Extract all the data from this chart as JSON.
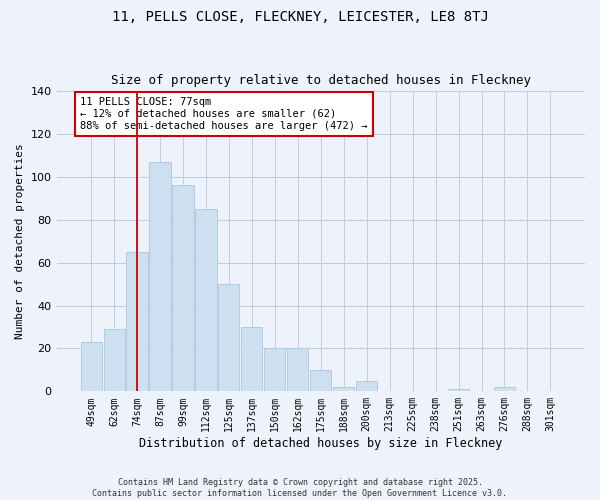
{
  "title": "11, PELLS CLOSE, FLECKNEY, LEICESTER, LE8 8TJ",
  "subtitle": "Size of property relative to detached houses in Fleckney",
  "xlabel": "Distribution of detached houses by size in Fleckney",
  "ylabel": "Number of detached properties",
  "categories": [
    "49sqm",
    "62sqm",
    "74sqm",
    "87sqm",
    "99sqm",
    "112sqm",
    "125sqm",
    "137sqm",
    "150sqm",
    "162sqm",
    "175sqm",
    "188sqm",
    "200sqm",
    "213sqm",
    "225sqm",
    "238sqm",
    "251sqm",
    "263sqm",
    "276sqm",
    "288sqm",
    "301sqm"
  ],
  "values": [
    23,
    29,
    65,
    107,
    96,
    85,
    50,
    30,
    20,
    20,
    10,
    2,
    5,
    0,
    0,
    0,
    1,
    0,
    2,
    0,
    0
  ],
  "bar_color": "#cce0f0",
  "bar_edge_color": "#aac8e0",
  "vline_x_index": 2,
  "vline_color": "#cc0000",
  "annotation_text": "11 PELLS CLOSE: 77sqm\n← 12% of detached houses are smaller (62)\n88% of semi-detached houses are larger (472) →",
  "annotation_box_color": "#ffffff",
  "annotation_box_edge": "#cc0000",
  "ylim": [
    0,
    140
  ],
  "yticks": [
    0,
    20,
    40,
    60,
    80,
    100,
    120,
    140
  ],
  "footer_line1": "Contains HM Land Registry data © Crown copyright and database right 2025.",
  "footer_line2": "Contains public sector information licensed under the Open Government Licence v3.0.",
  "bg_color": "#eef2fa",
  "title_fontsize": 10,
  "subtitle_fontsize": 9
}
